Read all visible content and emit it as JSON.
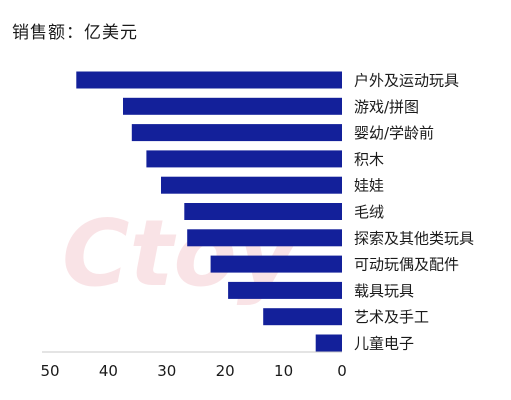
{
  "chart_data": {
    "type": "bar",
    "orientation": "horizontal",
    "x_direction": "reversed",
    "title": "销售额：亿美元",
    "xlabel": "",
    "ylabel": "",
    "xlim": [
      0,
      50
    ],
    "x_ticks": [
      50,
      40,
      30,
      20,
      10,
      0
    ],
    "grid": false,
    "categories": [
      "户外及运动玩具",
      "游戏/拼图",
      "婴幼/学龄前",
      "积木",
      "娃娃",
      "毛绒",
      "探索及其他类玩具",
      "可动玩偶及配件",
      "载具玩具",
      "艺术及手工",
      "儿童电子"
    ],
    "values": [
      45.5,
      37.5,
      36,
      33.5,
      31,
      27,
      26.5,
      22.5,
      19.5,
      13.5,
      4.5
    ],
    "bar_color": "#13209a"
  },
  "watermark": {
    "text": "Ctoy",
    "color": "#e05a6a"
  }
}
